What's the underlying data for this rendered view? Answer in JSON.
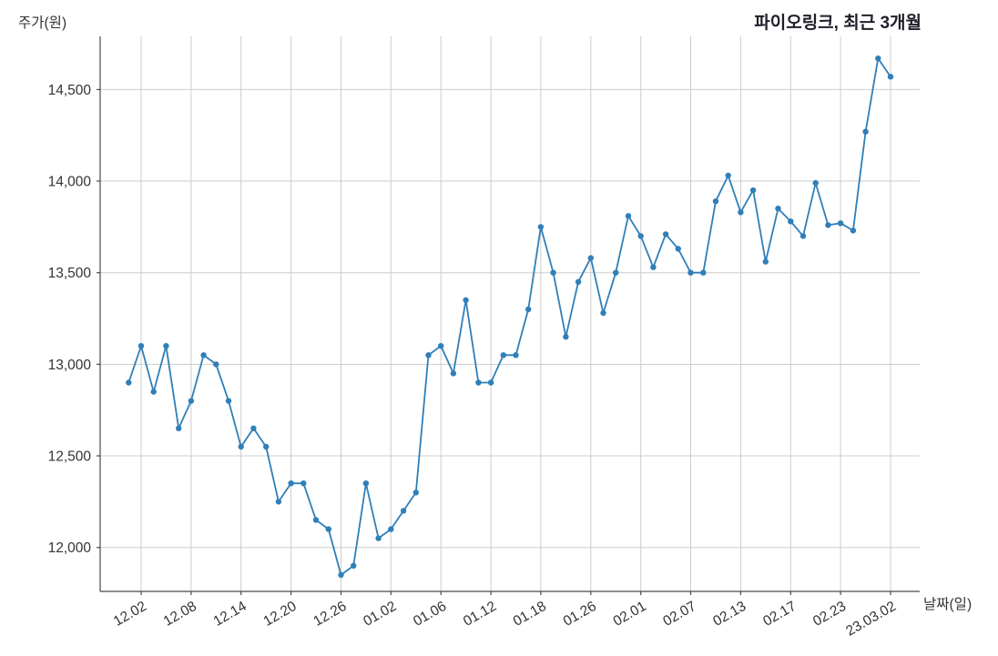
{
  "page": {
    "title": "파이오링크, 최근 3개월",
    "y_axis_label": "주가(원)",
    "x_axis_label": "날짜(일)"
  },
  "chart_data": {
    "type": "line",
    "title": "파이오링크, 최근 3개월",
    "xlabel": "날짜(일)",
    "ylabel": "주가(원)",
    "grid": true,
    "grid_color": "#cdcdcd",
    "line_color": "#2f7fb8",
    "marker": "circle",
    "legend_position": "none",
    "axis": {
      "ylim": [
        11760,
        14790
      ],
      "y_ticks": [
        12000,
        12500,
        13000,
        13500,
        14000,
        14500
      ],
      "y_tick_labels": [
        "12,000",
        "12,500",
        "13,000",
        "13,500",
        "14,000",
        "14,500"
      ],
      "x_tick_indices": [
        1,
        5,
        9,
        13,
        17,
        21,
        25,
        29,
        33,
        37,
        41,
        45,
        49,
        53,
        57,
        61
      ],
      "x_tick_labels": [
        "12.02",
        "12.08",
        "12.14",
        "12.20",
        "12.26",
        "01.02",
        "01.06",
        "01.12",
        "01.18",
        "01.26",
        "02.01",
        "02.07",
        "02.13",
        "02.17",
        "02.23",
        "23.03.02"
      ]
    },
    "series": [
      {
        "name": "주가",
        "values": [
          12900,
          13100,
          12850,
          13100,
          12650,
          12800,
          13050,
          13000,
          12800,
          12550,
          12650,
          12550,
          12250,
          12350,
          12350,
          12150,
          12100,
          11850,
          11900,
          12350,
          12050,
          12100,
          12200,
          12300,
          13050,
          13100,
          12950,
          13350,
          12900,
          12900,
          13050,
          13050,
          13300,
          13750,
          13500,
          13150,
          13450,
          13580,
          13280,
          13500,
          13810,
          13700,
          13530,
          13710,
          13630,
          13500,
          13500,
          13890,
          14030,
          13830,
          13950,
          13560,
          13850,
          13780,
          13700,
          13990,
          13760,
          13770,
          13730,
          14270,
          14670,
          14570
        ]
      }
    ]
  }
}
